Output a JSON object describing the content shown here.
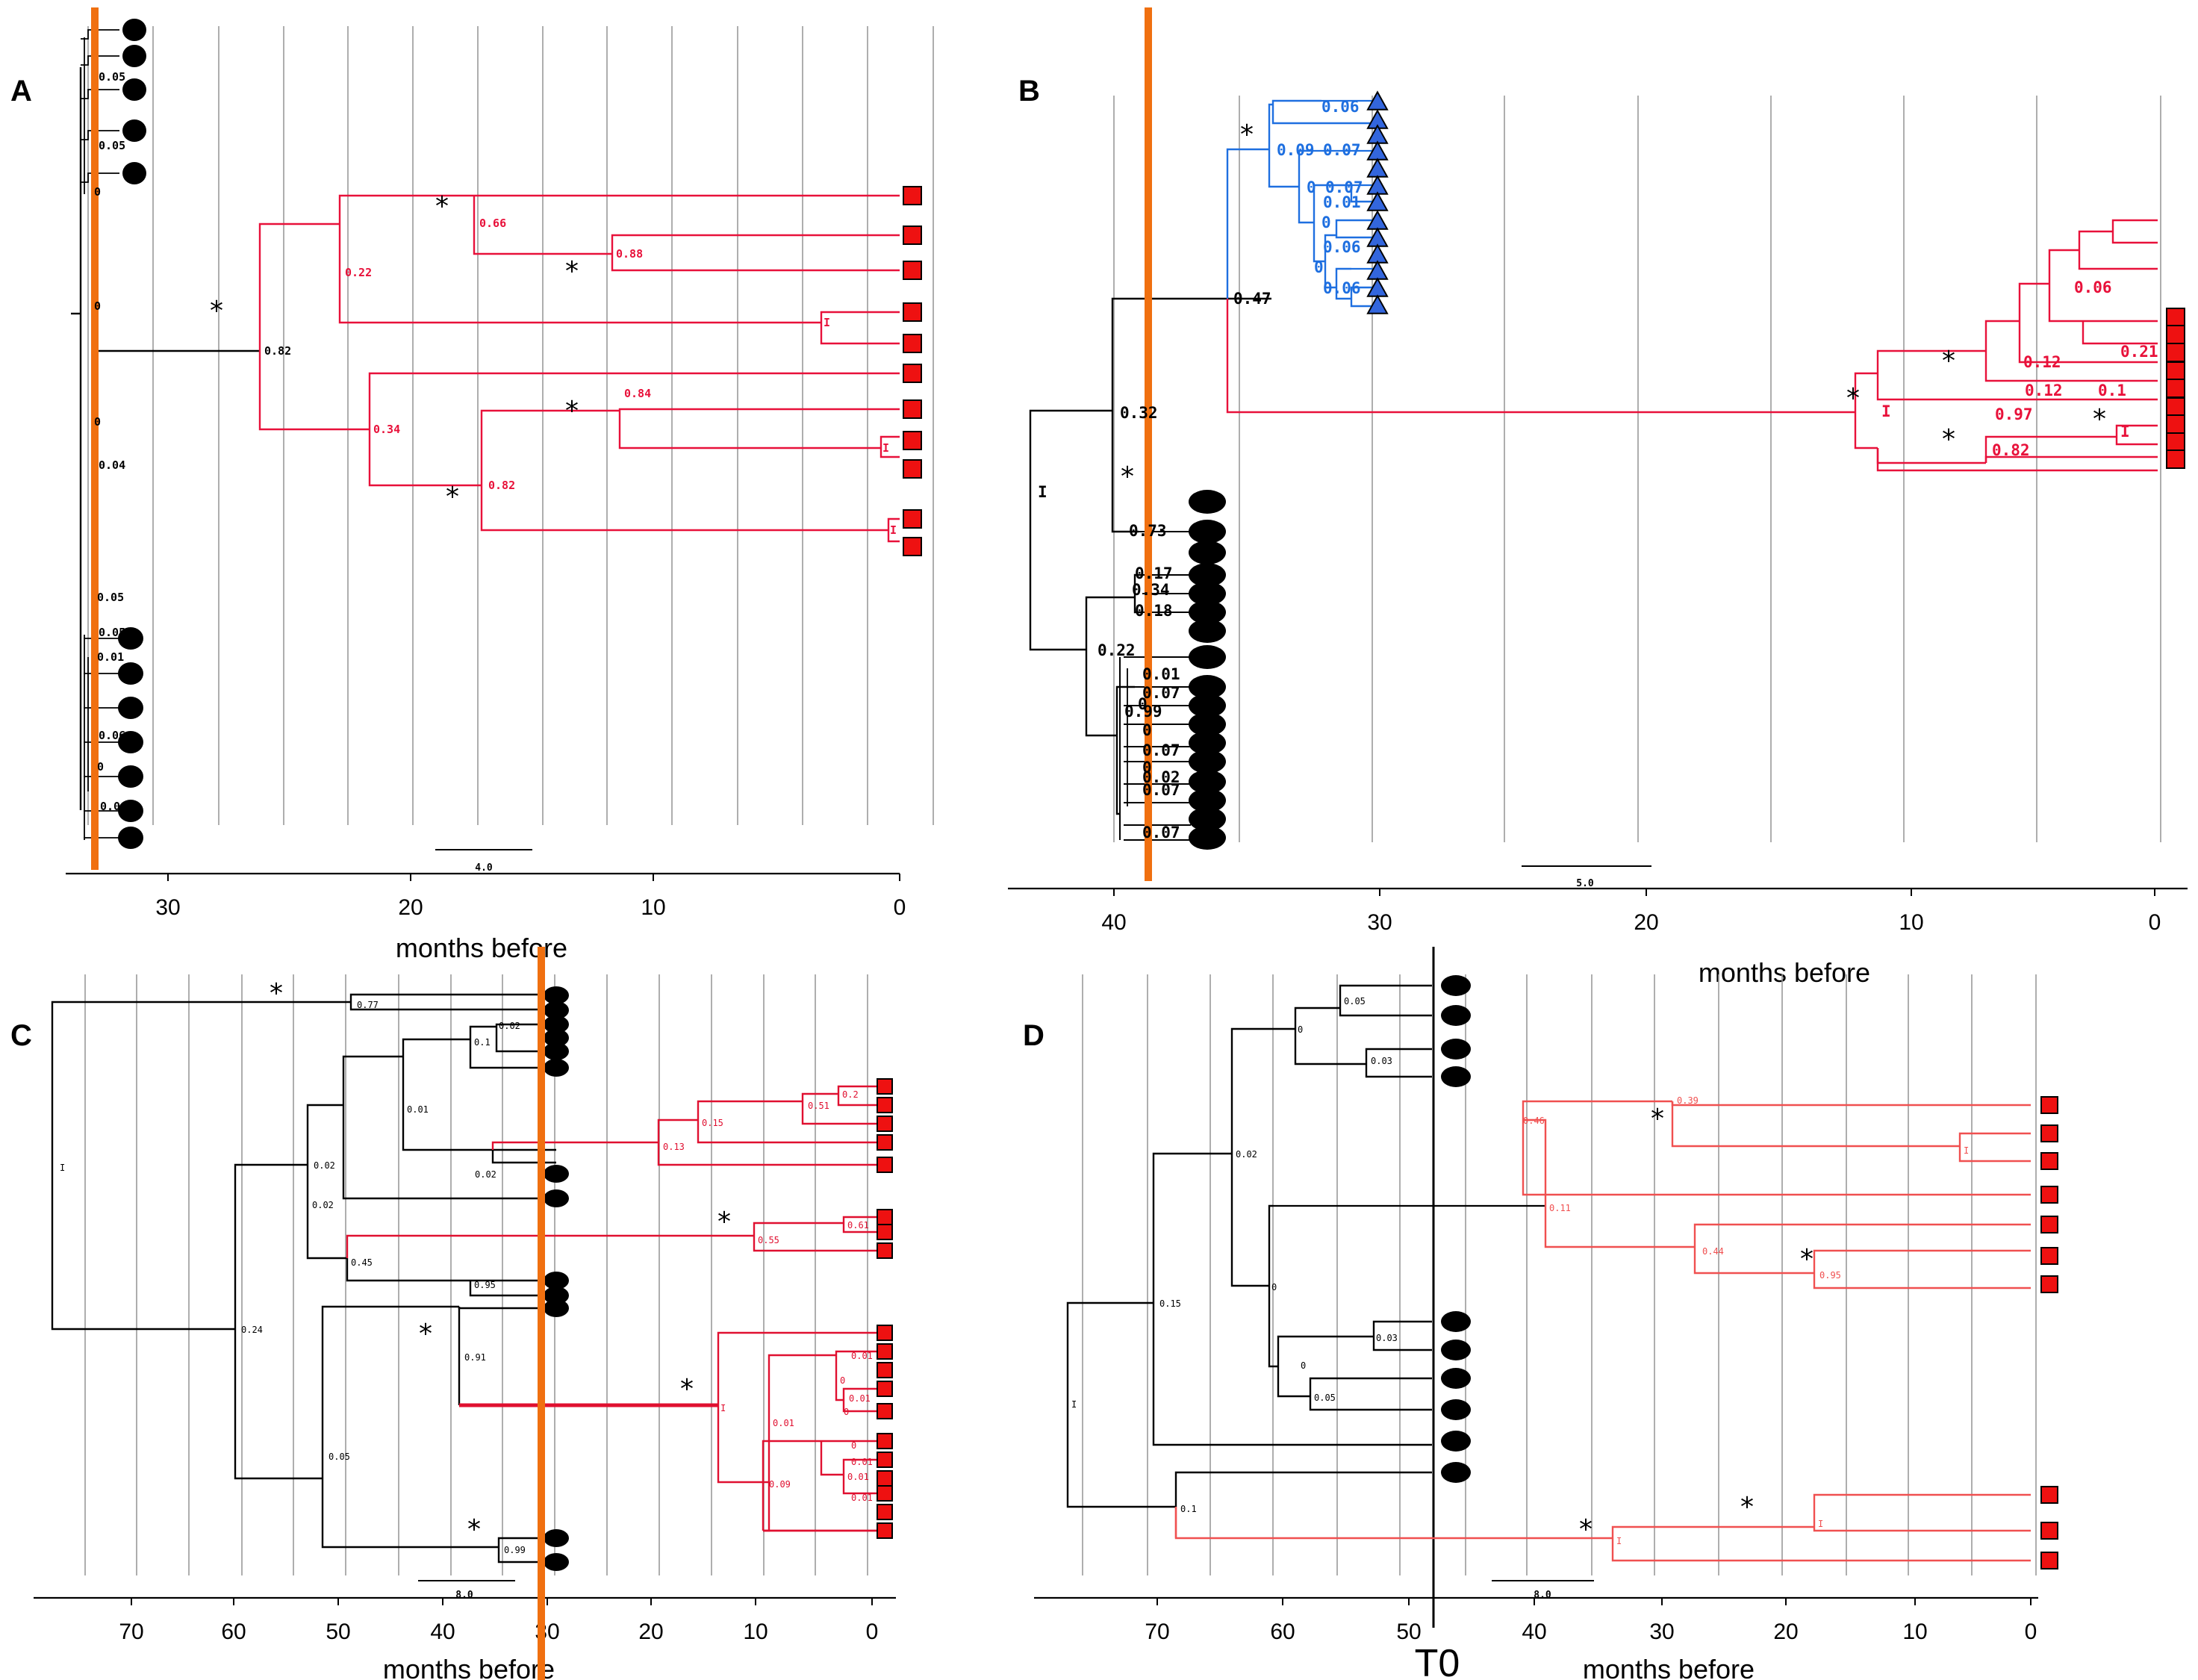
{
  "colors": {
    "black": "#000000",
    "red": "#e8113a",
    "red_c": "#e01030",
    "red_d": "#f05050",
    "blue": "#1e6fe0",
    "orange": "#f07010",
    "grid": "#999999",
    "marker_red": "#ee1111",
    "marker_blue": "#3366dd"
  },
  "axis_label": "months before",
  "t0_label": "T0",
  "panels": [
    {
      "letter": "A",
      "ticks": [
        "30",
        "20",
        "10",
        "0"
      ],
      "scale_label": "4.0",
      "node_labels": [
        "0.05",
        "0.05",
        "0",
        "0",
        "0",
        "0.04",
        "0.05",
        "0.05",
        "0.01",
        "0.06",
        "0",
        "0.06",
        "0.82",
        "0.22",
        "0.66",
        "0.88",
        "I",
        "0.34",
        "0.82",
        "0.84",
        "I",
        "I"
      ]
    },
    {
      "letter": "B",
      "ticks": [
        "40",
        "30",
        "20",
        "10",
        "0"
      ],
      "scale_label": "5.0",
      "node_labels": [
        "0.06",
        "0.09",
        "0.07",
        "0",
        "0.07",
        "0.01",
        "0",
        "0.06",
        "0",
        "0.06",
        "0.47",
        "0.32",
        "I",
        "0.73",
        "0.17",
        "0.34",
        "0.18",
        "0.22",
        "0.01",
        "0.07",
        "0",
        "0.99",
        "0",
        "0.07",
        "0",
        "0.02",
        "0.07",
        "0.07",
        "I",
        "0.97",
        "0.12",
        "0.12",
        "0.1",
        "0.06",
        "0.21",
        "I",
        "0.82"
      ]
    },
    {
      "letter": "C",
      "ticks": [
        "70",
        "60",
        "50",
        "40",
        "30",
        "20",
        "10",
        "0"
      ],
      "scale_label": "8.0",
      "node_labels": [
        "I",
        "0.77",
        "0.24",
        "0.02",
        "0.02",
        "0.01",
        "0.02",
        "0.1",
        "0.02",
        "0.45",
        "0.95",
        "0.05",
        "0.91",
        "0.99",
        "0.13",
        "0.15",
        "0.51",
        "0.2",
        "0.55",
        "0.61",
        "I",
        "0.01",
        "0.09",
        "0",
        "0.01",
        "0",
        "0.01",
        "0",
        "0.01",
        "0.01",
        "0.01"
      ]
    },
    {
      "letter": "D",
      "ticks": [
        "70",
        "60",
        "50",
        "40",
        "30",
        "20",
        "10",
        "0"
      ],
      "scale_label": "8.0",
      "node_labels": [
        "I",
        "0.15",
        "0.02",
        "0",
        "0.05",
        "0.03",
        "0",
        "0.03",
        "0",
        "0.05",
        "0.1",
        "I",
        "I",
        "0.11",
        "0.46",
        "0.39",
        "I",
        "0.44",
        "0.95"
      ]
    }
  ]
}
